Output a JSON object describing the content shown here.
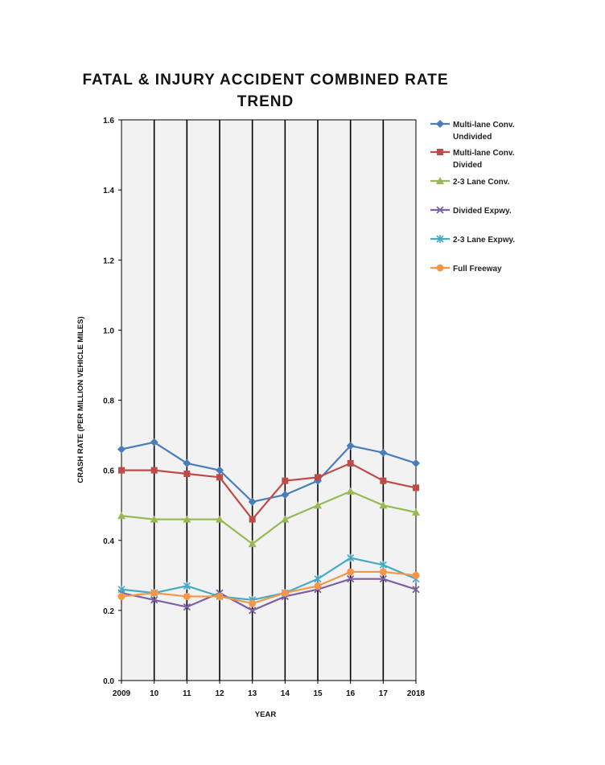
{
  "chart_data": {
    "type": "line",
    "title_line1": "FATAL &  INJURY ACCIDENT COMBINED RATE",
    "title_line2": "TREND",
    "xlabel": "YEAR",
    "ylabel": "CRASH RATE (PER MILLION VEHICLE MILES)",
    "categories": [
      "2009",
      "10",
      "11",
      "12",
      "13",
      "14",
      "15",
      "16",
      "17",
      "2018"
    ],
    "ylim": [
      0,
      1.6
    ],
    "yticks": [
      "0.0",
      "0.2",
      "0.4",
      "0.6",
      "0.8",
      "1.0",
      "1.2",
      "1.4",
      "1.6"
    ],
    "grid": "vertical",
    "plot_background": "#f2f2f2",
    "legend_position": "right",
    "series": [
      {
        "name": "Multi-lane Conv. Undivided",
        "legend_lines": [
          "Multi-lane Conv.",
          "Undivided"
        ],
        "color": "#4a7ebb",
        "marker": "diamond",
        "values": [
          0.66,
          0.68,
          0.62,
          0.6,
          0.51,
          0.53,
          0.57,
          0.67,
          0.65,
          0.62
        ]
      },
      {
        "name": "Multi-lane Conv. Divided",
        "legend_lines": [
          "Multi-lane Conv.",
          "Divided"
        ],
        "color": "#be4b48",
        "marker": "square",
        "values": [
          0.6,
          0.6,
          0.59,
          0.58,
          0.46,
          0.57,
          0.58,
          0.62,
          0.57,
          0.55
        ]
      },
      {
        "name": "2-3 Lane Conv.",
        "legend_lines": [
          "2-3 Lane Conv."
        ],
        "color": "#98b954",
        "marker": "triangle",
        "values": [
          0.47,
          0.46,
          0.46,
          0.46,
          0.39,
          0.46,
          0.5,
          0.54,
          0.5,
          0.48
        ]
      },
      {
        "name": "Divided Expwy.",
        "legend_lines": [
          "Divided Expwy."
        ],
        "color": "#7d60a0",
        "marker": "x",
        "values": [
          0.25,
          0.23,
          0.21,
          0.25,
          0.2,
          0.24,
          0.26,
          0.29,
          0.29,
          0.26
        ]
      },
      {
        "name": "2-3 Lane Expwy.",
        "legend_lines": [
          "2-3 Lane Expwy."
        ],
        "color": "#46aac5",
        "marker": "star",
        "values": [
          0.26,
          0.25,
          0.27,
          0.24,
          0.23,
          0.25,
          0.29,
          0.35,
          0.33,
          0.29
        ]
      },
      {
        "name": "Full Freeway",
        "legend_lines": [
          "Full Freeway"
        ],
        "color": "#f79646",
        "marker": "circle",
        "values": [
          0.24,
          0.25,
          0.24,
          0.24,
          0.22,
          0.25,
          0.27,
          0.31,
          0.31,
          0.3
        ]
      }
    ]
  }
}
